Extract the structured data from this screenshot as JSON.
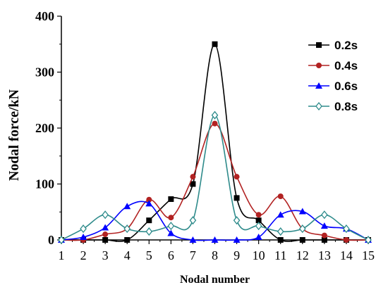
{
  "chart_data": {
    "type": "line",
    "xlabel": "Nodal number",
    "ylabel": "Nodal force/kN",
    "xlim": [
      1,
      15
    ],
    "ylim": [
      0,
      400
    ],
    "x_ticks": [
      "1",
      "2",
      "3",
      "4",
      "5",
      "6",
      "7",
      "8",
      "9",
      "10",
      "11",
      "12",
      "13",
      "14",
      "15"
    ],
    "y_ticks": [
      "0",
      "100",
      "200",
      "300",
      "400"
    ],
    "legend_position": "top-right",
    "grid": false,
    "series": [
      {
        "name": "0.2s",
        "color": "#000000",
        "marker": "square",
        "x": [
          1,
          2,
          3,
          4,
          5,
          6,
          7,
          8,
          9,
          10,
          11,
          12,
          13,
          14,
          15
        ],
        "y": [
          0,
          0,
          0,
          0,
          35,
          73,
          100,
          350,
          75,
          35,
          0,
          0,
          0,
          0,
          0
        ]
      },
      {
        "name": "0.4s",
        "color": "#b22222",
        "marker": "circle",
        "x": [
          1,
          2,
          3,
          4,
          5,
          6,
          7,
          8,
          9,
          10,
          11,
          12,
          13,
          14,
          15
        ],
        "y": [
          0,
          0,
          10,
          20,
          72,
          40,
          113,
          208,
          113,
          45,
          78,
          20,
          8,
          0,
          0
        ]
      },
      {
        "name": "0.6s",
        "color": "#0000ff",
        "marker": "triangle",
        "x": [
          1,
          2,
          3,
          4,
          5,
          6,
          7,
          8,
          9,
          10,
          11,
          12,
          13,
          14,
          15
        ],
        "y": [
          0,
          5,
          22,
          60,
          65,
          12,
          0,
          0,
          0,
          5,
          45,
          51,
          25,
          20,
          0
        ]
      },
      {
        "name": "0.8s",
        "color": "#2e8b8b",
        "marker": "diamond",
        "x": [
          1,
          2,
          3,
          4,
          5,
          6,
          7,
          8,
          9,
          10,
          11,
          12,
          13,
          14,
          15
        ],
        "y": [
          0,
          20,
          45,
          20,
          15,
          25,
          35,
          223,
          35,
          25,
          15,
          20,
          45,
          20,
          0
        ]
      }
    ]
  }
}
